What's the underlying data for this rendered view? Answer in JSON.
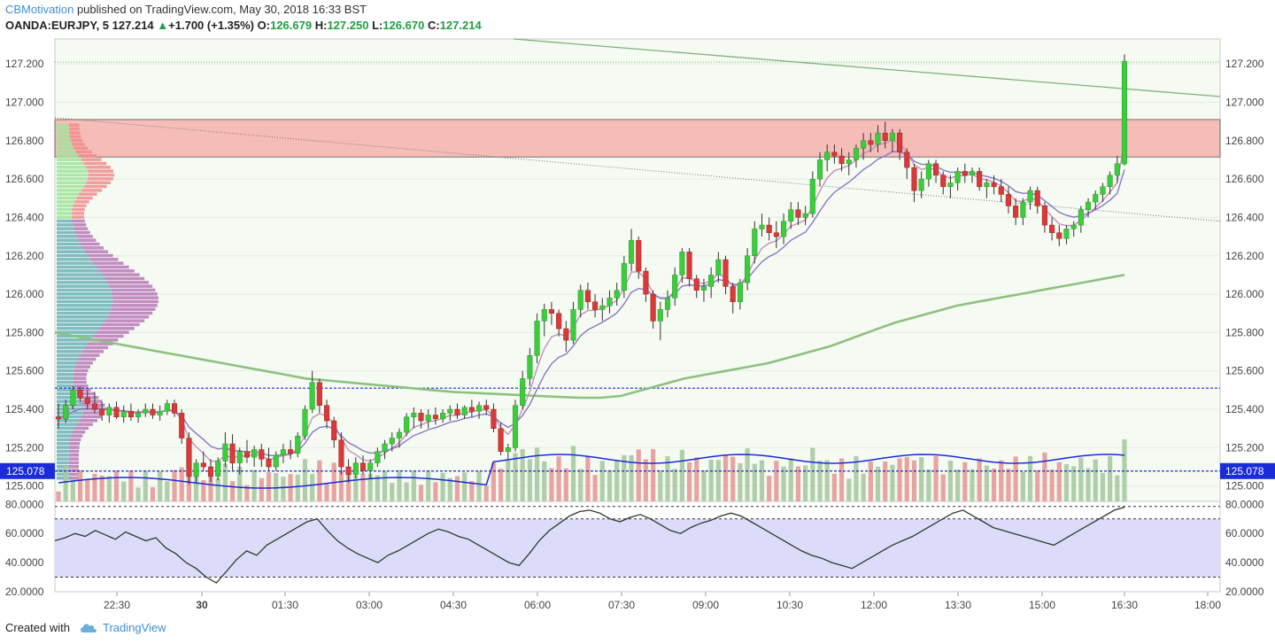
{
  "header": {
    "author": "CBMotivation",
    "published_text": "published on TradingView.com, May 30, 2018 16:33 BST",
    "symbol": "OANDA:EURJPY, 5",
    "last": "127.214",
    "change": "+1.700 (+1.35%)",
    "open_label": "O:",
    "open": "126.679",
    "high_label": "H:",
    "high": "127.250",
    "low_label": "L:",
    "low": "126.670",
    "close_label": "C:",
    "close": "127.214"
  },
  "footer": {
    "created_with": "Created with",
    "brand": "TradingView"
  },
  "colors": {
    "up": "#3ccc3c",
    "down": "#d83a3a",
    "zone": "#f4a7a4",
    "sma_long": "#8cc27e",
    "ema_fast": "#c490b8",
    "ema_slow": "#8a78c8",
    "vol_up": "#a7c9a1",
    "vol_down": "#e69a99",
    "rsi_line": "#2d3b2a",
    "rsi_band": "#dcdcfa",
    "level_line": "#1a2bd8"
  },
  "chart_data": {
    "type": "candlestick",
    "symbol": "OANDA:EURJPY",
    "interval": "5",
    "price_axis": {
      "min": 124.92,
      "max": 127.33,
      "ticks": [
        "127.200",
        "127.000",
        "126.800",
        "126.600",
        "126.400",
        "126.200",
        "126.000",
        "125.800",
        "125.600",
        "125.400",
        "125.200",
        "125.000"
      ]
    },
    "rsi_axis": {
      "min": 20,
      "max": 80,
      "ticks": [
        "80.0000",
        "60.0000",
        "40.0000",
        "20.0000"
      ],
      "upper_band": 70,
      "lower_band": 30
    },
    "time_labels": [
      "22:30",
      "30",
      "01:30",
      "03:00",
      "04:30",
      "06:00",
      "07:30",
      "09:00",
      "10:30",
      "12:00",
      "13:30",
      "15:00",
      "16:30",
      "18:00"
    ],
    "current_level": "125.078",
    "resistance_zone": [
      126.715,
      126.91
    ],
    "level_lines": [
      125.51,
      125.078
    ],
    "candles": [
      {
        "o": 125.36,
        "h": 125.43,
        "l": 125.3,
        "c": 125.35
      },
      {
        "o": 125.35,
        "h": 125.45,
        "l": 125.33,
        "c": 125.42
      },
      {
        "o": 125.42,
        "h": 125.52,
        "l": 125.4,
        "c": 125.5
      },
      {
        "o": 125.5,
        "h": 125.52,
        "l": 125.44,
        "c": 125.46
      },
      {
        "o": 125.46,
        "h": 125.5,
        "l": 125.4,
        "c": 125.43
      },
      {
        "o": 125.43,
        "h": 125.49,
        "l": 125.38,
        "c": 125.4
      },
      {
        "o": 125.4,
        "h": 125.44,
        "l": 125.34,
        "c": 125.37
      },
      {
        "o": 125.37,
        "h": 125.43,
        "l": 125.33,
        "c": 125.41
      },
      {
        "o": 125.41,
        "h": 125.44,
        "l": 125.35,
        "c": 125.36
      },
      {
        "o": 125.36,
        "h": 125.42,
        "l": 125.33,
        "c": 125.39
      },
      {
        "o": 125.39,
        "h": 125.43,
        "l": 125.34,
        "c": 125.36
      },
      {
        "o": 125.36,
        "h": 125.4,
        "l": 125.33,
        "c": 125.38
      },
      {
        "o": 125.38,
        "h": 125.43,
        "l": 125.36,
        "c": 125.4
      },
      {
        "o": 125.4,
        "h": 125.43,
        "l": 125.35,
        "c": 125.37
      },
      {
        "o": 125.37,
        "h": 125.42,
        "l": 125.34,
        "c": 125.39
      },
      {
        "o": 125.39,
        "h": 125.45,
        "l": 125.37,
        "c": 125.43
      },
      {
        "o": 125.43,
        "h": 125.45,
        "l": 125.36,
        "c": 125.38
      },
      {
        "o": 125.38,
        "h": 125.4,
        "l": 125.22,
        "c": 125.25
      },
      {
        "o": 125.25,
        "h": 125.28,
        "l": 125.01,
        "c": 125.05
      },
      {
        "o": 125.05,
        "h": 125.14,
        "l": 125.02,
        "c": 125.12
      },
      {
        "o": 125.12,
        "h": 125.18,
        "l": 125.08,
        "c": 125.1
      },
      {
        "o": 125.1,
        "h": 125.14,
        "l": 125.02,
        "c": 125.05
      },
      {
        "o": 125.05,
        "h": 125.15,
        "l": 125.03,
        "c": 125.13
      },
      {
        "o": 125.13,
        "h": 125.28,
        "l": 125.1,
        "c": 125.22
      },
      {
        "o": 125.22,
        "h": 125.27,
        "l": 125.08,
        "c": 125.12
      },
      {
        "o": 125.12,
        "h": 125.2,
        "l": 125.06,
        "c": 125.18
      },
      {
        "o": 125.18,
        "h": 125.24,
        "l": 125.12,
        "c": 125.15
      },
      {
        "o": 125.15,
        "h": 125.21,
        "l": 125.1,
        "c": 125.19
      },
      {
        "o": 125.19,
        "h": 125.22,
        "l": 125.1,
        "c": 125.14
      },
      {
        "o": 125.14,
        "h": 125.2,
        "l": 125.08,
        "c": 125.1
      },
      {
        "o": 125.1,
        "h": 125.18,
        "l": 125.08,
        "c": 125.16
      },
      {
        "o": 125.16,
        "h": 125.22,
        "l": 125.12,
        "c": 125.19
      },
      {
        "o": 125.19,
        "h": 125.24,
        "l": 125.14,
        "c": 125.17
      },
      {
        "o": 125.17,
        "h": 125.28,
        "l": 125.15,
        "c": 125.26
      },
      {
        "o": 125.26,
        "h": 125.42,
        "l": 125.24,
        "c": 125.4
      },
      {
        "o": 125.4,
        "h": 125.6,
        "l": 125.38,
        "c": 125.54
      },
      {
        "o": 125.54,
        "h": 125.56,
        "l": 125.38,
        "c": 125.42
      },
      {
        "o": 125.42,
        "h": 125.45,
        "l": 125.3,
        "c": 125.34
      },
      {
        "o": 125.34,
        "h": 125.36,
        "l": 125.2,
        "c": 125.24
      },
      {
        "o": 125.24,
        "h": 125.28,
        "l": 125.06,
        "c": 125.1
      },
      {
        "o": 125.1,
        "h": 125.14,
        "l": 125.02,
        "c": 125.06
      },
      {
        "o": 125.06,
        "h": 125.15,
        "l": 125.04,
        "c": 125.12
      },
      {
        "o": 125.12,
        "h": 125.16,
        "l": 125.06,
        "c": 125.08
      },
      {
        "o": 125.08,
        "h": 125.14,
        "l": 125.04,
        "c": 125.12
      },
      {
        "o": 125.12,
        "h": 125.2,
        "l": 125.1,
        "c": 125.18
      },
      {
        "o": 125.18,
        "h": 125.24,
        "l": 125.14,
        "c": 125.22
      },
      {
        "o": 125.22,
        "h": 125.28,
        "l": 125.18,
        "c": 125.25
      },
      {
        "o": 125.25,
        "h": 125.3,
        "l": 125.2,
        "c": 125.28
      },
      {
        "o": 125.28,
        "h": 125.38,
        "l": 125.26,
        "c": 125.36
      },
      {
        "o": 125.36,
        "h": 125.41,
        "l": 125.3,
        "c": 125.38
      },
      {
        "o": 125.38,
        "h": 125.4,
        "l": 125.3,
        "c": 125.34
      },
      {
        "o": 125.34,
        "h": 125.4,
        "l": 125.3,
        "c": 125.37
      },
      {
        "o": 125.37,
        "h": 125.41,
        "l": 125.32,
        "c": 125.35
      },
      {
        "o": 125.35,
        "h": 125.4,
        "l": 125.33,
        "c": 125.38
      },
      {
        "o": 125.38,
        "h": 125.42,
        "l": 125.34,
        "c": 125.4
      },
      {
        "o": 125.4,
        "h": 125.43,
        "l": 125.35,
        "c": 125.37
      },
      {
        "o": 125.37,
        "h": 125.42,
        "l": 125.35,
        "c": 125.41
      },
      {
        "o": 125.41,
        "h": 125.45,
        "l": 125.36,
        "c": 125.39
      },
      {
        "o": 125.39,
        "h": 125.44,
        "l": 125.35,
        "c": 125.42
      },
      {
        "o": 125.42,
        "h": 125.45,
        "l": 125.37,
        "c": 125.4
      },
      {
        "o": 125.4,
        "h": 125.43,
        "l": 125.28,
        "c": 125.3
      },
      {
        "o": 125.3,
        "h": 125.33,
        "l": 125.16,
        "c": 125.18
      },
      {
        "o": 125.18,
        "h": 125.22,
        "l": 125.14,
        "c": 125.2
      },
      {
        "o": 125.2,
        "h": 125.45,
        "l": 125.18,
        "c": 125.42
      },
      {
        "o": 125.42,
        "h": 125.6,
        "l": 125.4,
        "c": 125.56
      },
      {
        "o": 125.56,
        "h": 125.72,
        "l": 125.52,
        "c": 125.68
      },
      {
        "o": 125.68,
        "h": 125.9,
        "l": 125.64,
        "c": 125.86
      },
      {
        "o": 125.86,
        "h": 125.95,
        "l": 125.78,
        "c": 125.92
      },
      {
        "o": 125.92,
        "h": 125.96,
        "l": 125.84,
        "c": 125.9
      },
      {
        "o": 125.9,
        "h": 125.92,
        "l": 125.78,
        "c": 125.82
      },
      {
        "o": 125.82,
        "h": 125.86,
        "l": 125.7,
        "c": 125.76
      },
      {
        "o": 125.76,
        "h": 125.96,
        "l": 125.74,
        "c": 125.92
      },
      {
        "o": 125.92,
        "h": 126.05,
        "l": 125.88,
        "c": 126.02
      },
      {
        "o": 126.02,
        "h": 126.06,
        "l": 125.92,
        "c": 125.96
      },
      {
        "o": 125.96,
        "h": 126.0,
        "l": 125.88,
        "c": 125.92
      },
      {
        "o": 125.92,
        "h": 125.98,
        "l": 125.86,
        "c": 125.94
      },
      {
        "o": 125.94,
        "h": 126.02,
        "l": 125.9,
        "c": 125.98
      },
      {
        "o": 125.98,
        "h": 126.06,
        "l": 125.94,
        "c": 126.02
      },
      {
        "o": 126.02,
        "h": 126.2,
        "l": 125.98,
        "c": 126.16
      },
      {
        "o": 126.16,
        "h": 126.34,
        "l": 126.12,
        "c": 126.28
      },
      {
        "o": 126.28,
        "h": 126.3,
        "l": 126.08,
        "c": 126.12
      },
      {
        "o": 126.12,
        "h": 126.14,
        "l": 125.96,
        "c": 126.0
      },
      {
        "o": 126.0,
        "h": 126.02,
        "l": 125.82,
        "c": 125.86
      },
      {
        "o": 125.86,
        "h": 125.96,
        "l": 125.76,
        "c": 125.92
      },
      {
        "o": 125.92,
        "h": 126.02,
        "l": 125.88,
        "c": 125.98
      },
      {
        "o": 125.98,
        "h": 126.14,
        "l": 125.94,
        "c": 126.1
      },
      {
        "o": 126.1,
        "h": 126.24,
        "l": 126.06,
        "c": 126.22
      },
      {
        "o": 126.22,
        "h": 126.24,
        "l": 126.04,
        "c": 126.08
      },
      {
        "o": 126.08,
        "h": 126.1,
        "l": 125.98,
        "c": 126.02
      },
      {
        "o": 126.02,
        "h": 126.08,
        "l": 125.96,
        "c": 126.04
      },
      {
        "o": 126.04,
        "h": 126.14,
        "l": 125.98,
        "c": 126.1
      },
      {
        "o": 126.1,
        "h": 126.22,
        "l": 126.06,
        "c": 126.18
      },
      {
        "o": 126.18,
        "h": 126.2,
        "l": 126.0,
        "c": 126.04
      },
      {
        "o": 126.04,
        "h": 126.06,
        "l": 125.9,
        "c": 125.96
      },
      {
        "o": 125.96,
        "h": 126.08,
        "l": 125.92,
        "c": 126.06
      },
      {
        "o": 126.06,
        "h": 126.24,
        "l": 126.02,
        "c": 126.2
      },
      {
        "o": 126.2,
        "h": 126.38,
        "l": 126.16,
        "c": 126.34
      },
      {
        "o": 126.34,
        "h": 126.42,
        "l": 126.3,
        "c": 126.36
      },
      {
        "o": 126.36,
        "h": 126.4,
        "l": 126.28,
        "c": 126.32
      },
      {
        "o": 126.32,
        "h": 126.38,
        "l": 126.24,
        "c": 126.3
      },
      {
        "o": 126.3,
        "h": 126.42,
        "l": 126.26,
        "c": 126.38
      },
      {
        "o": 126.38,
        "h": 126.48,
        "l": 126.34,
        "c": 126.44
      },
      {
        "o": 126.44,
        "h": 126.48,
        "l": 126.36,
        "c": 126.4
      },
      {
        "o": 126.4,
        "h": 126.46,
        "l": 126.36,
        "c": 126.42
      },
      {
        "o": 126.42,
        "h": 126.64,
        "l": 126.4,
        "c": 126.6
      },
      {
        "o": 126.6,
        "h": 126.74,
        "l": 126.56,
        "c": 126.7
      },
      {
        "o": 126.7,
        "h": 126.78,
        "l": 126.64,
        "c": 126.74
      },
      {
        "o": 126.74,
        "h": 126.78,
        "l": 126.68,
        "c": 126.72
      },
      {
        "o": 126.72,
        "h": 126.76,
        "l": 126.64,
        "c": 126.68
      },
      {
        "o": 126.68,
        "h": 126.74,
        "l": 126.62,
        "c": 126.7
      },
      {
        "o": 126.7,
        "h": 126.78,
        "l": 126.66,
        "c": 126.76
      },
      {
        "o": 126.76,
        "h": 126.84,
        "l": 126.7,
        "c": 126.8
      },
      {
        "o": 126.8,
        "h": 126.84,
        "l": 126.74,
        "c": 126.78
      },
      {
        "o": 126.78,
        "h": 126.88,
        "l": 126.74,
        "c": 126.84
      },
      {
        "o": 126.84,
        "h": 126.9,
        "l": 126.76,
        "c": 126.8
      },
      {
        "o": 126.8,
        "h": 126.86,
        "l": 126.74,
        "c": 126.84
      },
      {
        "o": 126.84,
        "h": 126.86,
        "l": 126.7,
        "c": 126.74
      },
      {
        "o": 126.74,
        "h": 126.76,
        "l": 126.6,
        "c": 126.66
      },
      {
        "o": 126.66,
        "h": 126.68,
        "l": 126.48,
        "c": 126.54
      },
      {
        "o": 126.54,
        "h": 126.64,
        "l": 126.5,
        "c": 126.6
      },
      {
        "o": 126.6,
        "h": 126.7,
        "l": 126.56,
        "c": 126.68
      },
      {
        "o": 126.68,
        "h": 126.7,
        "l": 126.58,
        "c": 126.62
      },
      {
        "o": 126.62,
        "h": 126.64,
        "l": 126.52,
        "c": 126.56
      },
      {
        "o": 126.56,
        "h": 126.62,
        "l": 126.5,
        "c": 126.58
      },
      {
        "o": 126.58,
        "h": 126.66,
        "l": 126.54,
        "c": 126.64
      },
      {
        "o": 126.64,
        "h": 126.68,
        "l": 126.58,
        "c": 126.62
      },
      {
        "o": 126.62,
        "h": 126.66,
        "l": 126.58,
        "c": 126.64
      },
      {
        "o": 126.64,
        "h": 126.66,
        "l": 126.54,
        "c": 126.56
      },
      {
        "o": 126.56,
        "h": 126.6,
        "l": 126.5,
        "c": 126.58
      },
      {
        "o": 126.58,
        "h": 126.62,
        "l": 126.52,
        "c": 126.56
      },
      {
        "o": 126.56,
        "h": 126.6,
        "l": 126.48,
        "c": 126.52
      },
      {
        "o": 126.52,
        "h": 126.56,
        "l": 126.42,
        "c": 126.46
      },
      {
        "o": 126.46,
        "h": 126.5,
        "l": 126.36,
        "c": 126.4
      },
      {
        "o": 126.4,
        "h": 126.5,
        "l": 126.36,
        "c": 126.48
      },
      {
        "o": 126.48,
        "h": 126.56,
        "l": 126.44,
        "c": 126.54
      },
      {
        "o": 126.54,
        "h": 126.56,
        "l": 126.42,
        "c": 126.46
      },
      {
        "o": 126.46,
        "h": 126.48,
        "l": 126.32,
        "c": 126.36
      },
      {
        "o": 126.36,
        "h": 126.4,
        "l": 126.28,
        "c": 126.32
      },
      {
        "o": 126.32,
        "h": 126.36,
        "l": 126.25,
        "c": 126.29
      },
      {
        "o": 126.29,
        "h": 126.36,
        "l": 126.26,
        "c": 126.34
      },
      {
        "o": 126.34,
        "h": 126.38,
        "l": 126.3,
        "c": 126.36
      },
      {
        "o": 126.36,
        "h": 126.46,
        "l": 126.32,
        "c": 126.44
      },
      {
        "o": 126.44,
        "h": 126.5,
        "l": 126.4,
        "c": 126.48
      },
      {
        "o": 126.48,
        "h": 126.54,
        "l": 126.44,
        "c": 126.52
      },
      {
        "o": 126.52,
        "h": 126.58,
        "l": 126.48,
        "c": 126.56
      },
      {
        "o": 126.56,
        "h": 126.64,
        "l": 126.52,
        "c": 126.62
      },
      {
        "o": 126.62,
        "h": 126.72,
        "l": 126.58,
        "c": 126.68
      },
      {
        "o": 126.679,
        "h": 127.25,
        "l": 126.67,
        "c": 127.214
      }
    ],
    "series": [
      {
        "name": "SMA 200",
        "values": [
          125.8,
          125.78,
          125.76,
          125.74,
          125.72,
          125.7,
          125.68,
          125.66,
          125.64,
          125.62,
          125.6,
          125.58,
          125.56,
          125.55,
          125.54,
          125.53,
          125.52,
          125.51,
          125.5,
          125.49,
          125.485,
          125.48,
          125.475,
          125.47,
          125.465,
          125.46,
          125.46,
          125.47,
          125.5,
          125.53,
          125.56,
          125.58,
          125.6,
          125.62,
          125.64,
          125.67,
          125.7,
          125.73,
          125.77,
          125.81,
          125.85,
          125.88,
          125.91,
          125.94,
          125.96,
          125.98,
          126.0,
          126.02,
          126.04,
          126.06,
          126.08,
          126.1
        ]
      },
      {
        "name": "RSI",
        "values": [
          55,
          57,
          60,
          58,
          62,
          59,
          56,
          61,
          58,
          55,
          57,
          50,
          46,
          40,
          36,
          30,
          26,
          34,
          42,
          48,
          45,
          52,
          56,
          60,
          64,
          68,
          70,
          62,
          55,
          50,
          46,
          43,
          40,
          45,
          48,
          52,
          56,
          60,
          63,
          61,
          58,
          56,
          52,
          48,
          44,
          40,
          38,
          46,
          55,
          62,
          67,
          72,
          75,
          76,
          74,
          70,
          68,
          71,
          73,
          70,
          66,
          62,
          60,
          64,
          67,
          69,
          72,
          74,
          72,
          68,
          64,
          60,
          56,
          52,
          48,
          45,
          43,
          40,
          38,
          36,
          40,
          44,
          48,
          52,
          55,
          58,
          62,
          66,
          70,
          74,
          76,
          72,
          68,
          64,
          62,
          60,
          58,
          56,
          54,
          52,
          56,
          60,
          64,
          68,
          72,
          76,
          78
        ]
      }
    ]
  }
}
